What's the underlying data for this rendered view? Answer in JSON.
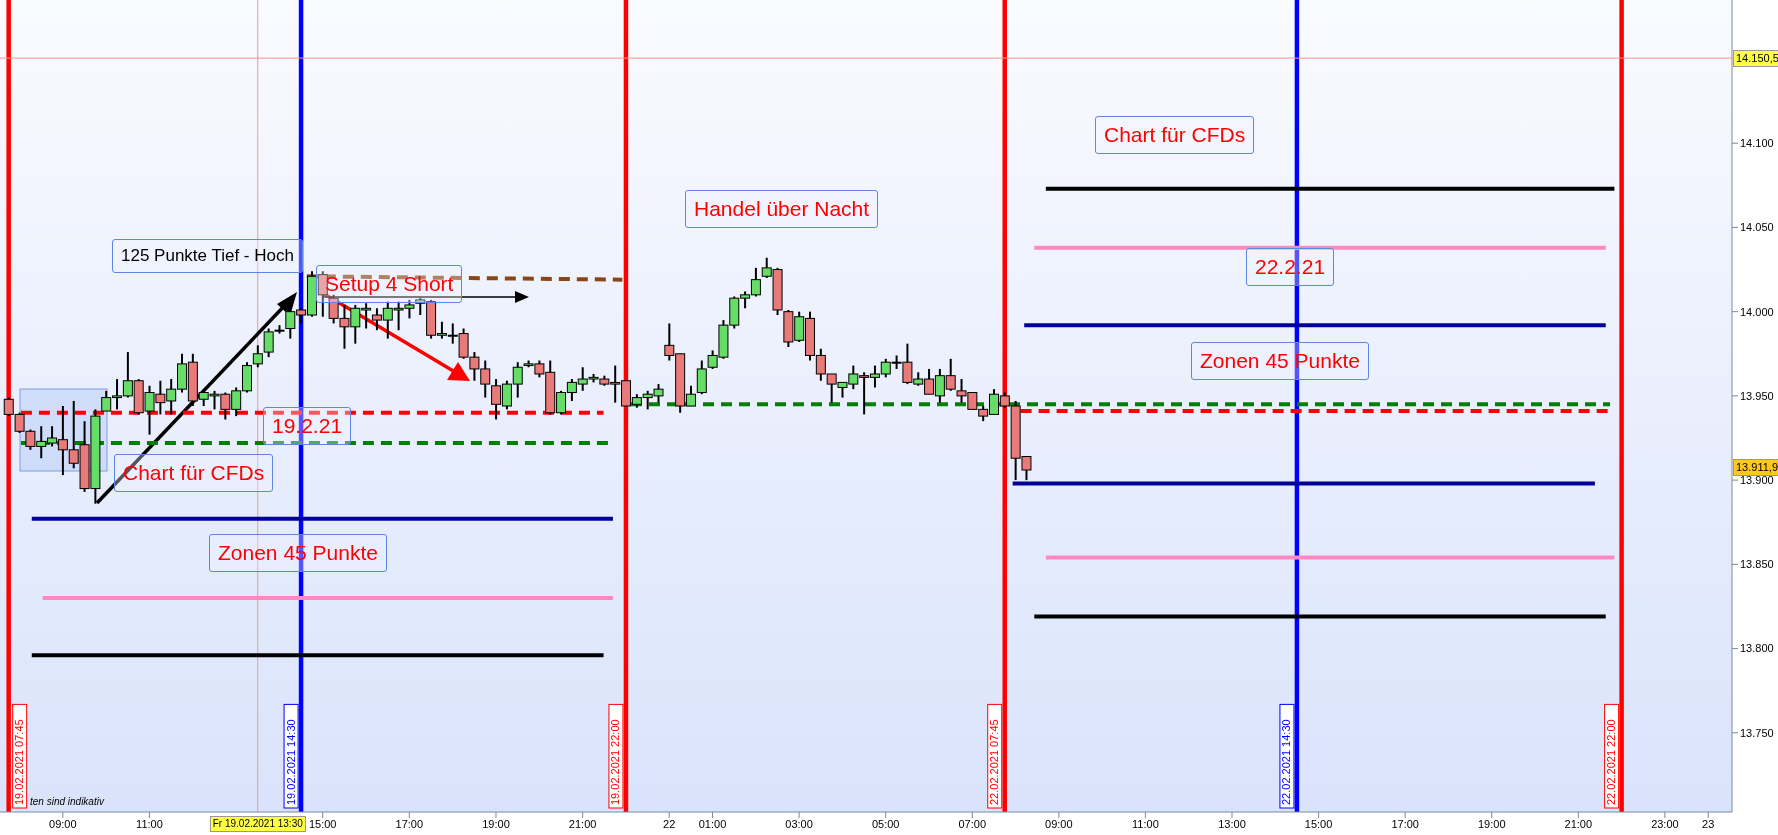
{
  "chart_data": [
    {
      "type": "candlestick",
      "x": [
        "2021-02-19T07:45",
        "2021-02-19T08:00",
        "2021-02-19T08:15",
        "2021-02-19T08:30",
        "2021-02-19T08:45",
        "2021-02-19T09:00",
        "2021-02-19T09:15",
        "2021-02-19T09:30",
        "2021-02-19T09:45",
        "2021-02-19T10:00",
        "2021-02-19T10:15",
        "2021-02-19T10:30",
        "2021-02-19T10:45",
        "2021-02-19T11:00",
        "2021-02-19T11:15",
        "2021-02-19T11:30",
        "2021-02-19T11:45",
        "2021-02-19T12:00",
        "2021-02-19T12:15",
        "2021-02-19T12:30",
        "2021-02-19T12:45",
        "2021-02-19T13:00",
        "2021-02-19T13:15",
        "2021-02-19T13:30",
        "2021-02-19T13:45",
        "2021-02-19T14:00",
        "2021-02-19T14:15",
        "2021-02-19T14:30",
        "2021-02-19T14:45",
        "2021-02-19T15:00",
        "2021-02-19T15:15",
        "2021-02-19T15:30",
        "2021-02-19T15:45",
        "2021-02-19T16:00",
        "2021-02-19T16:15",
        "2021-02-19T16:30",
        "2021-02-19T16:45",
        "2021-02-19T17:00",
        "2021-02-19T17:15",
        "2021-02-19T17:30",
        "2021-02-19T17:45",
        "2021-02-19T18:00",
        "2021-02-19T18:15",
        "2021-02-19T18:30",
        "2021-02-19T18:45",
        "2021-02-19T19:00",
        "2021-02-19T19:15",
        "2021-02-19T19:30",
        "2021-02-19T19:45",
        "2021-02-19T20:00",
        "2021-02-19T20:15",
        "2021-02-19T20:30",
        "2021-02-19T20:45",
        "2021-02-19T21:00",
        "2021-02-19T21:15",
        "2021-02-19T21:30",
        "2021-02-19T21:45",
        "2021-02-19T22:00"
      ],
      "ohlc": [
        [
          13948,
          13949,
          13938,
          13939
        ],
        [
          13939,
          13940,
          13928,
          13929
        ],
        [
          13929,
          13930,
          13918,
          13920
        ],
        [
          13920,
          13932,
          13913,
          13923
        ],
        [
          13922,
          13932,
          13920,
          13925
        ],
        [
          13924,
          13944,
          13903,
          13918
        ],
        [
          13918,
          13947,
          13907,
          13910
        ],
        [
          13921,
          13935,
          13893,
          13895
        ],
        [
          13895,
          13942,
          13886,
          13938
        ],
        [
          13941,
          13953,
          13941,
          13949
        ],
        [
          13949,
          13960,
          13942,
          13950
        ],
        [
          13950,
          13976,
          13949,
          13959
        ],
        [
          13959,
          13960,
          13939,
          13940
        ],
        [
          13941,
          13956,
          13927,
          13952
        ],
        [
          13951,
          13959,
          13939,
          13946
        ],
        [
          13947,
          13960,
          13939,
          13954
        ],
        [
          13954,
          13975,
          13952,
          13969
        ],
        [
          13970,
          13975,
          13944,
          13947
        ],
        [
          13948,
          13953,
          13944,
          13952
        ],
        [
          13950,
          13953,
          13942,
          13951
        ],
        [
          13951,
          13952,
          13936,
          13942
        ],
        [
          13942,
          13955,
          13938,
          13953
        ],
        [
          13953,
          13970,
          13952,
          13968
        ],
        [
          13969,
          13980,
          13967,
          13975
        ],
        [
          13976,
          13990,
          13973,
          13988
        ],
        [
          13989,
          13992,
          13987,
          13989
        ],
        [
          13990,
          14002,
          13984,
          14000
        ],
        [
          14001,
          14002,
          13993,
          13998
        ],
        [
          13998,
          14024,
          13997,
          14021
        ],
        [
          14022,
          14024,
          13997,
          14010
        ],
        [
          14008,
          14010,
          13993,
          13996
        ],
        [
          13996,
          14004,
          13978,
          13991
        ],
        [
          13991,
          14004,
          13981,
          14002
        ],
        [
          14001,
          14005,
          13990,
          14002
        ],
        [
          13998,
          14002,
          13989,
          13995
        ],
        [
          13995,
          14006,
          13984,
          14002
        ],
        [
          14001,
          14006,
          13989,
          14002
        ],
        [
          14002,
          14007,
          13996,
          14004
        ],
        [
          14005,
          14008,
          13998,
          14007
        ],
        [
          14006,
          14007,
          13984,
          13986
        ],
        [
          13986,
          13994,
          13984,
          13987
        ],
        [
          13986,
          13993,
          13981,
          13986
        ],
        [
          13987,
          13990,
          13972,
          13973
        ],
        [
          13973,
          13976,
          13959,
          13966
        ],
        [
          13966,
          13971,
          13949,
          13957
        ],
        [
          13956,
          13960,
          13936,
          13945
        ],
        [
          13944,
          13959,
          13942,
          13957
        ],
        [
          13957,
          13970,
          13949,
          13967
        ],
        [
          13968,
          13971,
          13967,
          13969
        ],
        [
          13969,
          13971,
          13961,
          13963
        ],
        [
          13964,
          13971,
          13939,
          13940
        ],
        [
          13940,
          13953,
          13939,
          13952
        ],
        [
          13952,
          13960,
          13947,
          13958
        ],
        [
          13957,
          13967,
          13953,
          13960
        ],
        [
          13960,
          13963,
          13958,
          13961
        ],
        [
          13960,
          13962,
          13956,
          13957
        ],
        [
          13958,
          13968,
          13946,
          13957
        ],
        [
          13959,
          13959,
          13944,
          13944
        ]
      ],
      "series": [
        {
          "type": "line",
          "x": [
            "2021-02-19T08:17",
            "2021-02-19T21:42"
          ],
          "values": [
            13877,
            13877
          ],
          "color": "#000099",
          "line_style": "solid"
        },
        {
          "type": "line",
          "x": [
            "2021-02-19T08:32",
            "2021-02-19T21:42"
          ],
          "values": [
            13830,
            13830
          ],
          "color": "#ff88c0",
          "line_style": "solid"
        },
        {
          "type": "line",
          "x": [
            "2021-02-19T08:17",
            "2021-02-19T21:29"
          ],
          "values": [
            13796,
            13796
          ],
          "color": "#000000",
          "line_style": "solid"
        },
        {
          "type": "line",
          "x": [
            "2021-02-19T08:02",
            "2021-02-19T21:29"
          ],
          "values": [
            13940,
            13940
          ],
          "color": "#ff0000",
          "line_style": "dashed"
        },
        {
          "type": "line",
          "x": [
            "2021-02-19T08:02",
            "2021-02-19T21:37"
          ],
          "values": [
            13922,
            13922
          ],
          "color": "#008000",
          "line_style": "dashed"
        },
        {
          "type": "line",
          "x": [
            "2021-02-19T14:38",
            "2021-02-19T21:55"
          ],
          "values": [
            14021,
            14019
          ],
          "color": "#8b4513",
          "line_style": "dashed"
        }
      ],
      "ref_lines": [
        {
          "axis": "x",
          "value": "2021-02-19T07:45",
          "label": "19.02.2021 07:45",
          "color": "#ff0000"
        },
        {
          "axis": "x",
          "value": "2021-02-19T14:30",
          "label": "19.02.2021 14:30",
          "color": "#0000ff"
        },
        {
          "axis": "x",
          "value": "2021-02-19T22:00",
          "label": "19.02.2021 22:00",
          "color": "#ff0000"
        },
        {
          "axis": "x",
          "value": "2021-02-19T13:30",
          "label": "Fr 19.02.2021 13:30",
          "color": "#ff9090"
        },
        {
          "axis": "y",
          "value": 14150.5,
          "color": "#ff9090"
        }
      ],
      "annotations": [
        "125 Punkte Tief - Hoch",
        "Setup 4 Short",
        "19.2.21",
        "Chart für CFDs",
        "Zonen 45 Punkte",
        "ten sind indikativ"
      ],
      "xlim": [
        "2021-02-19T07:33",
        "2021-02-19T22:07"
      ],
      "xticks": [
        {
          "value": "2021-02-19T09:00",
          "label": "09:00"
        },
        {
          "value": "2021-02-19T11:00",
          "label": "11:00"
        },
        {
          "value": "2021-02-19T15:00",
          "label": "15:00"
        },
        {
          "value": "2021-02-19T17:00",
          "label": "17:00"
        },
        {
          "value": "2021-02-19T19:00",
          "label": "19:00"
        },
        {
          "value": "2021-02-19T21:00",
          "label": "21:00"
        }
      ],
      "ylim": [
        13703,
        14185
      ],
      "tick_labels": "x"
    },
    {
      "type": "candlestick",
      "x": [
        "2021-02-21T23:15",
        "2021-02-21T23:30",
        "2021-02-21T23:45",
        "2021-02-22T00:00",
        "2021-02-22T00:15",
        "2021-02-22T00:30",
        "2021-02-22T00:45",
        "2021-02-22T01:00",
        "2021-02-22T01:15",
        "2021-02-22T01:30",
        "2021-02-22T01:45",
        "2021-02-22T02:00",
        "2021-02-22T02:15",
        "2021-02-22T02:30",
        "2021-02-22T02:45",
        "2021-02-22T03:00",
        "2021-02-22T03:15",
        "2021-02-22T03:30",
        "2021-02-22T03:45",
        "2021-02-22T04:00",
        "2021-02-22T04:15",
        "2021-02-22T04:30",
        "2021-02-22T04:45",
        "2021-02-22T05:00",
        "2021-02-22T05:15",
        "2021-02-22T05:30",
        "2021-02-22T05:45",
        "2021-02-22T06:00",
        "2021-02-22T06:15",
        "2021-02-22T06:30",
        "2021-02-22T06:45",
        "2021-02-22T07:00",
        "2021-02-22T07:15",
        "2021-02-22T07:30",
        "2021-02-22T07:45",
        "2021-02-22T08:00",
        "2021-02-22T08:15"
      ],
      "ohlc": [
        [
          13945,
          13951,
          13943,
          13949
        ],
        [
          13949,
          13953,
          13942,
          13951
        ],
        [
          13950,
          13957,
          13946,
          13954
        ],
        [
          13980,
          13993,
          13971,
          13974
        ],
        [
          13975,
          13975,
          13940,
          13944
        ],
        [
          13944,
          13956,
          13944,
          13951
        ],
        [
          13952,
          13971,
          13951,
          13966
        ],
        [
          13967,
          13977,
          13966,
          13974
        ],
        [
          13973,
          13995,
          13972,
          13992
        ],
        [
          13992,
          14009,
          13990,
          14008
        ],
        [
          14008,
          14012,
          14002,
          14010
        ],
        [
          14010,
          14026,
          14009,
          14019
        ],
        [
          14021,
          14032,
          14020,
          14026
        ],
        [
          14025,
          14026,
          13998,
          14001
        ],
        [
          14000,
          14001,
          13979,
          13982
        ],
        [
          13983,
          14000,
          13982,
          13997
        ],
        [
          13996,
          14000,
          13971,
          13974
        ],
        [
          13974,
          13978,
          13959,
          13963
        ],
        [
          13963,
          13963,
          13946,
          13957
        ],
        [
          13955,
          13958,
          13949,
          13958
        ],
        [
          13957,
          13968,
          13954,
          13963
        ],
        [
          13962,
          13964,
          13939,
          13961
        ],
        [
          13961,
          13968,
          13955,
          13963
        ],
        [
          13963,
          13972,
          13961,
          13970
        ],
        [
          13970,
          13974,
          13966,
          13970
        ],
        [
          13970,
          13981,
          13957,
          13958
        ],
        [
          13957,
          13964,
          13956,
          13960
        ],
        [
          13960,
          13966,
          13951,
          13951
        ],
        [
          13950,
          13966,
          13946,
          13962
        ],
        [
          13962,
          13972,
          13953,
          13954
        ],
        [
          13953,
          13960,
          13946,
          13950
        ],
        [
          13952,
          13952,
          13942,
          13942
        ],
        [
          13942,
          13944,
          13935,
          13938
        ],
        [
          13939,
          13954,
          13939,
          13951
        ],
        [
          13950,
          13952,
          13943,
          13944
        ],
        [
          13944,
          13947,
          13900,
          13913
        ],
        [
          13914,
          13914,
          13900,
          13906
        ]
      ],
      "series": [
        {
          "type": "line",
          "x": [
            "2021-02-21T23:07",
            "2021-02-22T21:44"
          ],
          "values": [
            13945,
            13945
          ],
          "color": "#008000",
          "line_style": "dashed"
        },
        {
          "type": "line",
          "x": [
            "2021-02-22T08:07",
            "2021-02-22T21:44"
          ],
          "values": [
            13941,
            13941
          ],
          "color": "#ff0000",
          "line_style": "dashed"
        },
        {
          "type": "line",
          "x": [
            "2021-02-22T08:42",
            "2021-02-22T21:50"
          ],
          "values": [
            14073,
            14073
          ],
          "color": "#000000",
          "line_style": "solid"
        },
        {
          "type": "line",
          "x": [
            "2021-02-22T08:26",
            "2021-02-22T21:38"
          ],
          "values": [
            14038,
            14038
          ],
          "color": "#ff88c0",
          "line_style": "solid"
        },
        {
          "type": "line",
          "x": [
            "2021-02-22T08:12",
            "2021-02-22T21:38"
          ],
          "values": [
            13992,
            13992
          ],
          "color": "#000099",
          "line_style": "solid"
        },
        {
          "type": "line",
          "x": [
            "2021-02-22T07:56",
            "2021-02-22T21:23"
          ],
          "values": [
            13898,
            13898
          ],
          "color": "#000099",
          "line_style": "solid"
        },
        {
          "type": "line",
          "x": [
            "2021-02-22T08:42",
            "2021-02-22T21:50"
          ],
          "values": [
            13854,
            13854
          ],
          "color": "#ff88c0",
          "line_style": "solid"
        },
        {
          "type": "line",
          "x": [
            "2021-02-22T08:26",
            "2021-02-22T21:38"
          ],
          "values": [
            13819,
            13819
          ],
          "color": "#000000",
          "line_style": "solid"
        }
      ],
      "ref_lines": [
        {
          "axis": "x",
          "value": "2021-02-22T07:45",
          "label": "22.02.2021 07:45",
          "color": "#ff0000"
        },
        {
          "axis": "x",
          "value": "2021-02-22T14:30",
          "label": "22.02.2021 14:30",
          "color": "#0000ff"
        },
        {
          "axis": "x",
          "value": "2021-02-22T22:00",
          "label": "22.02.2021 22:00",
          "color": "#ff0000"
        },
        {
          "axis": "y",
          "value": 14150.5,
          "label": "14.150,5",
          "color": "#ff9090"
        }
      ],
      "annotations": [
        "Handel über Nacht",
        "Chart für CFDs",
        "22.2.21",
        "Zonen 45 Punkte",
        "13.911,9"
      ],
      "xlim": [
        "2021-02-21T23:07",
        "2021-02-23T00:33"
      ],
      "xticks": [
        {
          "value": "2021-02-22T00:00",
          "label": "22"
        },
        {
          "value": "2021-02-22T01:00",
          "label": "01:00"
        },
        {
          "value": "2021-02-22T03:00",
          "label": "03:00"
        },
        {
          "value": "2021-02-22T05:00",
          "label": "05:00"
        },
        {
          "value": "2021-02-22T07:00",
          "label": "07:00"
        },
        {
          "value": "2021-02-22T09:00",
          "label": "09:00"
        },
        {
          "value": "2021-02-22T11:00",
          "label": "11:00"
        },
        {
          "value": "2021-02-22T13:00",
          "label": "13:00"
        },
        {
          "value": "2021-02-22T15:00",
          "label": "15:00"
        },
        {
          "value": "2021-02-22T17:00",
          "label": "17:00"
        },
        {
          "value": "2021-02-22T19:00",
          "label": "19:00"
        },
        {
          "value": "2021-02-22T21:00",
          "label": "21:00"
        },
        {
          "value": "2021-02-22T23:00",
          "label": "23:00"
        },
        {
          "value": "2021-02-23T00:00",
          "label": "23"
        }
      ],
      "ylim": [
        13703,
        14185
      ],
      "yticks": [
        {
          "value": 13750,
          "label": "13.750"
        },
        {
          "value": 13800,
          "label": "13.800"
        },
        {
          "value": 13850,
          "label": "13.850"
        },
        {
          "value": 13900,
          "label": "13.900"
        },
        {
          "value": 13950,
          "label": "13.950"
        },
        {
          "value": 14000,
          "label": "14.000"
        },
        {
          "value": 14050,
          "label": "14.050"
        },
        {
          "value": 14100,
          "label": "14.100"
        }
      ]
    }
  ]
}
